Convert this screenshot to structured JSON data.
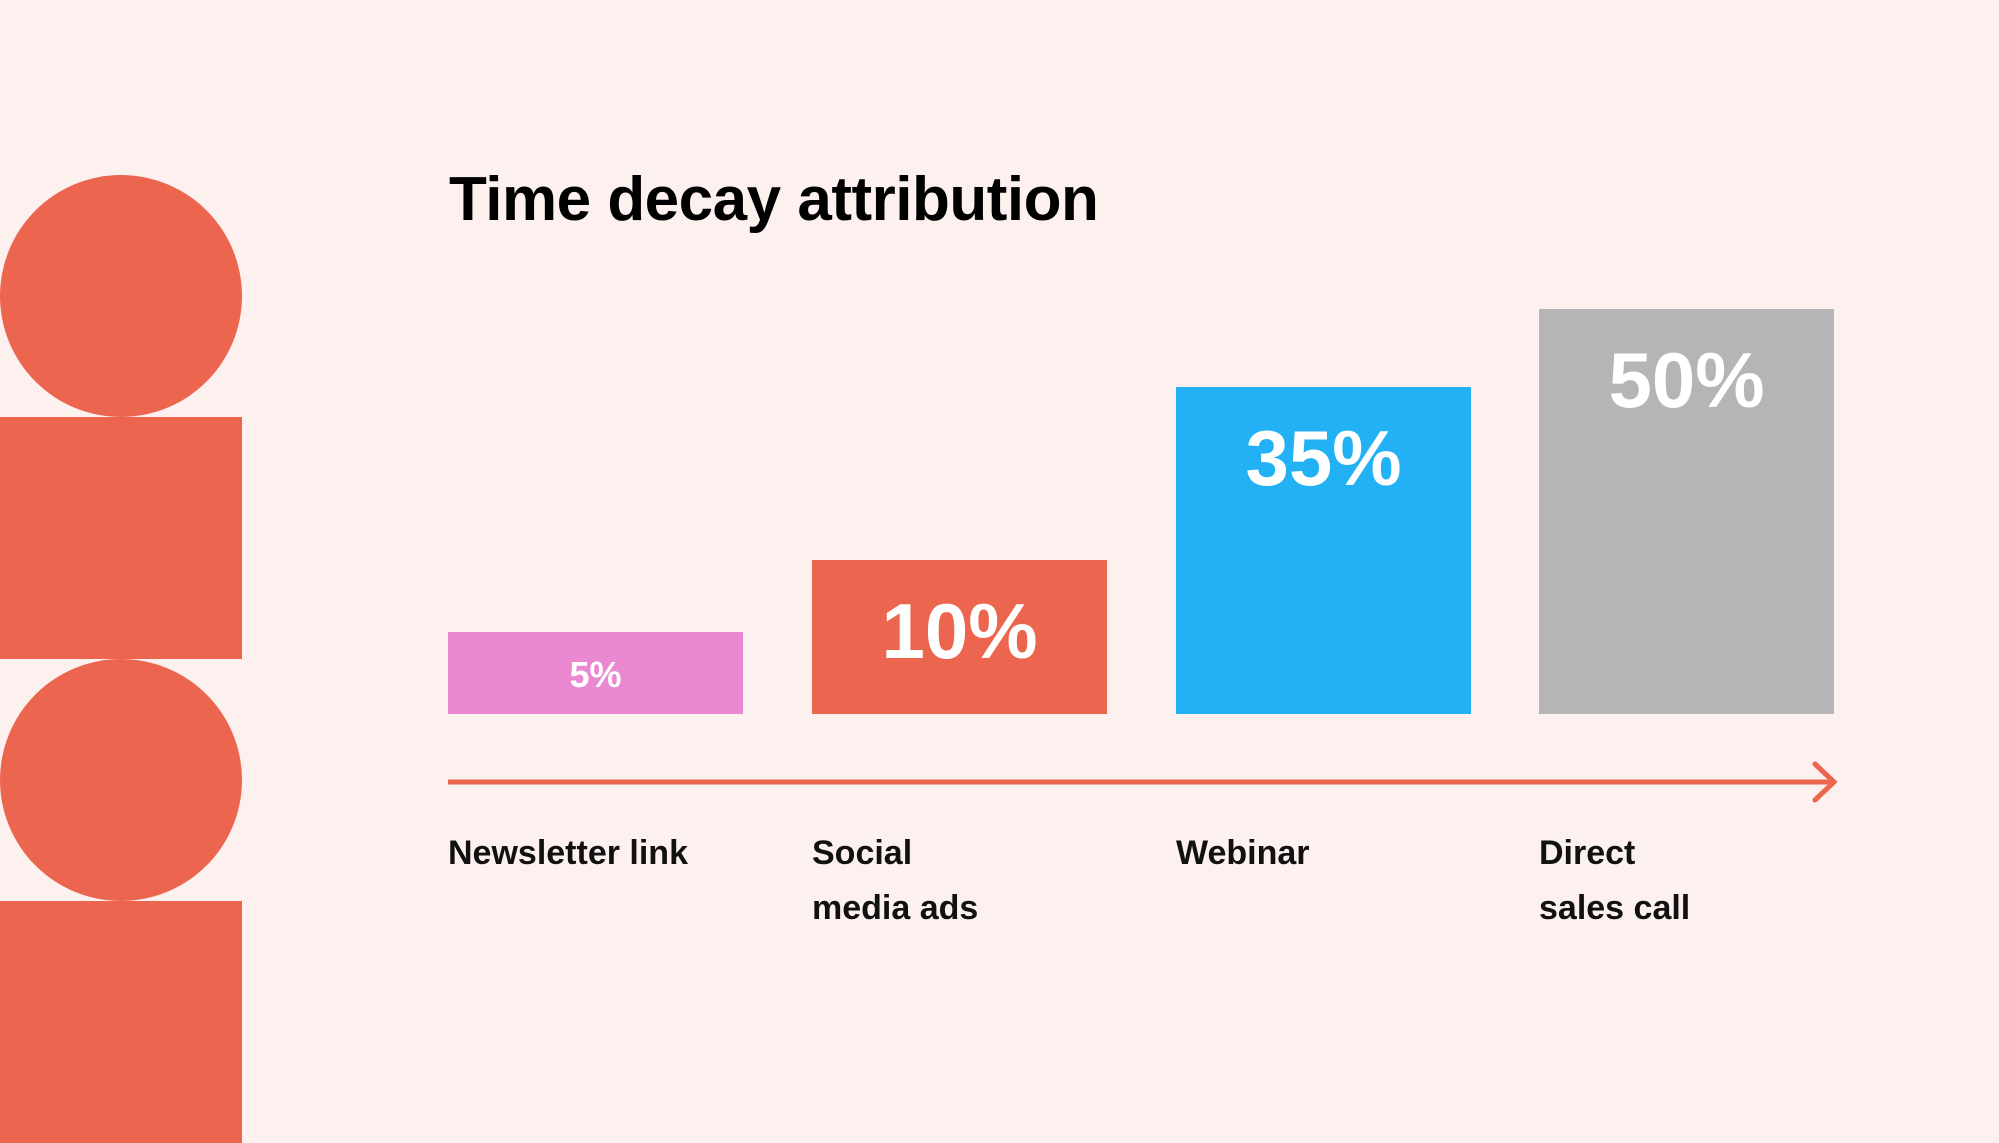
{
  "chart_data": {
    "type": "bar",
    "title": "Time decay attribution",
    "categories": [
      "Newsletter link",
      "Social media ads",
      "Webinar",
      "Direct sales call"
    ],
    "category_lines": [
      [
        "Newsletter link"
      ],
      [
        "Social",
        "media ads"
      ],
      [
        "Webinar"
      ],
      [
        "Direct",
        "sales call"
      ]
    ],
    "values": [
      5,
      10,
      35,
      50
    ],
    "value_labels": [
      "5%",
      "10%",
      "35%",
      "50%"
    ],
    "colors": [
      "#ea88d2",
      "#eb654f",
      "#21b1f4",
      "#b5b5b5"
    ],
    "grid": false,
    "xaxis": "arrow",
    "unit": "%"
  },
  "theme": {
    "background": "#fdf1ef",
    "accent": "#eb654f"
  }
}
